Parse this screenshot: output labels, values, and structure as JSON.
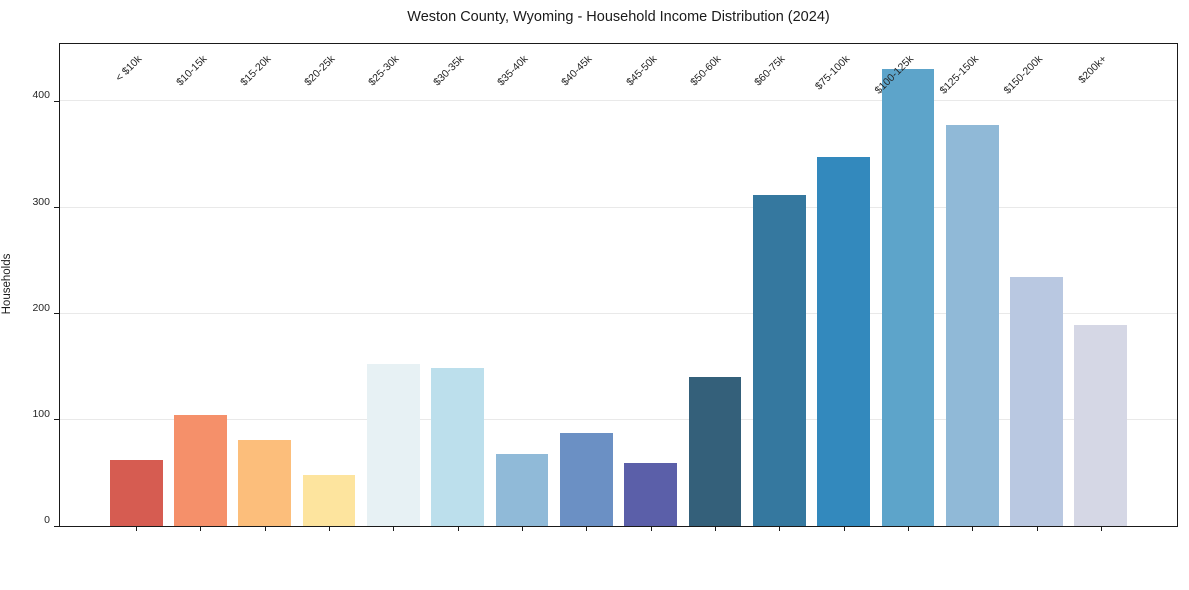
{
  "chart_data": {
    "type": "bar",
    "title": "Weston County, Wyoming - Household Income Distribution (2024)",
    "xlabel": "",
    "ylabel": "Households",
    "ylim": [
      0,
      454
    ],
    "yticks": [
      0,
      100,
      200,
      300,
      400
    ],
    "grid": "horizontal-light",
    "legend": "none",
    "categories": [
      "< $10k",
      "$10-15k",
      "$15-20k",
      "$20-25k",
      "$25-30k",
      "$30-35k",
      "$35-40k",
      "$40-45k",
      "$45-50k",
      "$50-60k",
      "$60-75k",
      "$75-100k",
      "$100-125k",
      "$125-150k",
      "$150-200k",
      "$200k+"
    ],
    "values": [
      62,
      105,
      81,
      48,
      153,
      149,
      68,
      88,
      59,
      140,
      312,
      348,
      430,
      378,
      235,
      189
    ],
    "bar_colors": [
      "#d65c51",
      "#f5906a",
      "#fcbe7b",
      "#fde49e",
      "#e7f1f4",
      "#bcdfec",
      "#90bad8",
      "#6b90c4",
      "#5b5fa9",
      "#34607a",
      "#35789f",
      "#3389bd",
      "#5da4ca",
      "#90b9d7",
      "#b9c8e1",
      "#d5d7e5"
    ],
    "frame_color": "#1a1a1a",
    "gridline_color": "#e9e9e9",
    "background_color": "#ffffff"
  }
}
